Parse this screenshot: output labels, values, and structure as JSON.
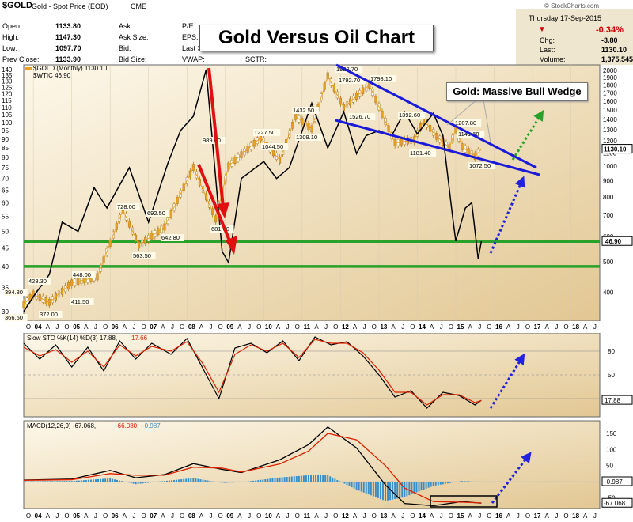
{
  "header": {
    "symbol": "$GOLD",
    "name": "Gold - Spot Price (EOD)",
    "exchange": "CME",
    "date": "Thursday  17-Sep-2015",
    "change_pct": "-0.34%",
    "watermark": "© StockCharts.com",
    "col1": [
      [
        "Open:",
        "1133.80"
      ],
      [
        "High:",
        "1147.30"
      ],
      [
        "Low:",
        "1097.70"
      ],
      [
        "Prev Close:",
        "1133.90"
      ]
    ],
    "col2": [
      "Ask:",
      "Ask Size:",
      "Bid:",
      "Bid Size:"
    ],
    "col3": [
      "P/E:",
      "EPS:",
      "Last S",
      "VWAP:"
    ],
    "sctr": "SCTR:",
    "right": [
      [
        "Chg:",
        "-3.80"
      ],
      [
        "Last:",
        "1130.10"
      ],
      [
        "Volume:",
        "1,375,545"
      ]
    ]
  },
  "overlay": {
    "title": "Gold Versus Oil Chart",
    "callout": "Gold:  Massive Bull Wedge"
  },
  "chart_data": [
    {
      "type": "line",
      "panel": "price",
      "legend": [
        "$GOLD (Monthly) 1130.10",
        "$WTIC 46.90"
      ],
      "x_tick_labels": [
        "O",
        "04",
        "A",
        "J",
        "O",
        "05",
        "A",
        "J",
        "O",
        "06",
        "A",
        "J",
        "O",
        "07",
        "A",
        "J",
        "O",
        "08",
        "A",
        "J",
        "O",
        "09",
        "A",
        "J",
        "O",
        "10",
        "A",
        "J",
        "O",
        "11",
        "A",
        "J",
        "O",
        "12",
        "A",
        "J",
        "O",
        "13",
        "A",
        "J",
        "O",
        "14",
        "A",
        "J",
        "O",
        "15",
        "A",
        "J",
        "O",
        "16",
        "A",
        "J",
        "O",
        "17",
        "A",
        "J",
        "O",
        "18",
        "A",
        "J"
      ],
      "left_axis_ticks": [
        140,
        135,
        130,
        125,
        120,
        115,
        110,
        105,
        100,
        95,
        90,
        85,
        80,
        75,
        70,
        65,
        60,
        55,
        50,
        45,
        40,
        35,
        30
      ],
      "right_axis_ticks": [
        2000,
        1900,
        1800,
        1700,
        1600,
        1500,
        1400,
        1300,
        1200,
        1100,
        1000,
        900,
        800,
        700,
        600,
        500,
        400
      ],
      "series": [
        {
          "name": "$GOLD (Monthly)",
          "color": "#e8a020",
          "x": [
            "2003-10",
            "2004-01",
            "2004-06",
            "2005-01",
            "2005-09",
            "2006-05",
            "2006-10",
            "2007-06",
            "2008-03",
            "2008-10",
            "2009-02",
            "2009-12",
            "2010-06",
            "2010-11",
            "2011-04",
            "2011-09",
            "2012-02",
            "2012-10",
            "2013-06",
            "2013-12",
            "2014-03",
            "2014-07",
            "2014-11",
            "2015-01",
            "2015-03",
            "2015-07",
            "2015-09"
          ],
          "y": [
            366.5,
            394.8,
            372,
            428.3,
            448,
            728,
            563.5,
            642.8,
            989.6,
            681,
            1000,
            1227.5,
            1044.5,
            1432.5,
            1309.1,
            1923.7,
            1526.7,
            1798.1,
            1181.4,
            1210,
            1392.6,
            1240,
            1141.6,
            1307.8,
            1150,
            1072.5,
            1130.1
          ]
        },
        {
          "name": "$WTIC",
          "color": "#000000",
          "x": [
            "2003-10",
            "2004-01",
            "2004-06",
            "2004-10",
            "2005-03",
            "2005-08",
            "2005-12",
            "2006-07",
            "2007-01",
            "2007-07",
            "2007-11",
            "2008-03",
            "2008-07",
            "2008-12",
            "2009-02",
            "2009-06",
            "2010-01",
            "2010-05",
            "2010-09",
            "2011-04",
            "2011-09",
            "2012-02",
            "2012-06",
            "2012-09",
            "2013-01",
            "2013-05",
            "2013-09",
            "2014-01",
            "2014-06",
            "2014-09",
            "2014-12",
            "2015-01",
            "2015-04",
            "2015-06",
            "2015-08",
            "2015-09"
          ],
          "y": [
            30,
            33,
            38,
            53,
            50,
            66,
            58,
            75,
            53,
            77,
            95,
            104,
            140,
            44,
            41,
            70,
            78,
            70,
            75,
            113,
            85,
            107,
            82,
            92,
            95,
            92,
            107,
            93,
            106,
            92,
            55,
            47,
            58,
            60,
            42,
            46.9
          ]
        }
      ],
      "horizontal_levels": [
        46.9,
        40
      ],
      "price_labels": [
        "1923.70",
        "1792.70",
        "1798.10",
        "1526.70",
        "1392.60",
        "1432.50",
        "1309.10",
        "1227.50",
        "1044.50",
        "1207.80",
        "1181.40",
        "1141.60",
        "1072.50",
        "989.60",
        "681.00",
        "728.00",
        "692.50",
        "642.80",
        "563.50",
        "448.00",
        "428.30",
        "411.50",
        "394.80",
        "372.00",
        "366.50"
      ],
      "last_tags": [
        "1130.10",
        "46.90"
      ]
    },
    {
      "type": "line",
      "panel": "stochastic",
      "legend": [
        "Slow STO %K(14) %D(3) 17.88,",
        "17.66"
      ],
      "y_ticks": [
        80,
        50,
        20
      ],
      "last_tag": "17.88",
      "series": [
        {
          "name": "%K",
          "color": "#000000",
          "x": [
            "2003-10",
            "2004-03",
            "2004-08",
            "2005-01",
            "2005-06",
            "2005-11",
            "2006-04",
            "2006-09",
            "2007-02",
            "2007-08",
            "2008-01",
            "2008-06",
            "2008-11",
            "2009-04",
            "2009-09",
            "2010-02",
            "2010-07",
            "2010-12",
            "2011-05",
            "2011-10",
            "2012-03",
            "2012-08",
            "2013-01",
            "2013-06",
            "2013-11",
            "2014-04",
            "2014-09",
            "2015-02",
            "2015-07",
            "2015-09"
          ],
          "y": [
            90,
            70,
            88,
            60,
            85,
            55,
            93,
            70,
            90,
            76,
            96,
            58,
            20,
            84,
            90,
            78,
            93,
            68,
            98,
            88,
            92,
            74,
            50,
            22,
            30,
            8,
            28,
            24,
            12,
            17.88
          ]
        },
        {
          "name": "%D",
          "color": "#dd2200",
          "x": [
            "2003-10",
            "2004-03",
            "2004-08",
            "2005-01",
            "2005-06",
            "2005-11",
            "2006-04",
            "2006-09",
            "2007-02",
            "2007-08",
            "2008-01",
            "2008-06",
            "2008-11",
            "2009-04",
            "2009-09",
            "2010-02",
            "2010-07",
            "2010-12",
            "2011-05",
            "2011-10",
            "2012-03",
            "2012-08",
            "2013-01",
            "2013-06",
            "2013-11",
            "2014-04",
            "2014-09",
            "2015-02",
            "2015-07",
            "2015-09"
          ],
          "y": [
            85,
            74,
            82,
            66,
            80,
            60,
            88,
            74,
            86,
            80,
            92,
            64,
            28,
            76,
            88,
            80,
            90,
            72,
            95,
            90,
            90,
            78,
            56,
            28,
            28,
            12,
            25,
            25,
            15,
            17.66
          ]
        }
      ]
    },
    {
      "type": "line",
      "panel": "macd",
      "legend": [
        "MACD(12,26,9) -67.068,",
        "-66.080,",
        "-0.987"
      ],
      "y_ticks": [
        150,
        100,
        50,
        -50
      ],
      "last_tags": [
        "-0.987",
        "-67.068"
      ],
      "series": [
        {
          "name": "MACD",
          "color": "#000000",
          "x": [
            "2003-10",
            "2005-01",
            "2006-01",
            "2006-09",
            "2007-06",
            "2008-03",
            "2008-12",
            "2009-06",
            "2010-06",
            "2011-03",
            "2011-09",
            "2012-06",
            "2013-03",
            "2013-09",
            "2014-06",
            "2015-03",
            "2015-09"
          ],
          "y": [
            5,
            8,
            35,
            12,
            22,
            56,
            38,
            28,
            68,
            115,
            170,
            105,
            -10,
            -68,
            -75,
            -62,
            -67.068
          ]
        },
        {
          "name": "Signal",
          "color": "#dd2200",
          "x": [
            "2003-10",
            "2005-01",
            "2006-01",
            "2006-09",
            "2007-06",
            "2008-03",
            "2008-12",
            "2009-06",
            "2010-06",
            "2011-03",
            "2011-09",
            "2012-06",
            "2013-03",
            "2013-09",
            "2014-06",
            "2015-03",
            "2015-09"
          ],
          "y": [
            4,
            6,
            25,
            20,
            20,
            45,
            42,
            30,
            55,
            95,
            150,
            130,
            50,
            -20,
            -62,
            -64,
            -66.08
          ]
        },
        {
          "name": "Histogram",
          "color": "#3a8fc8",
          "x": [
            "2003-10",
            "2005-01",
            "2006-01",
            "2006-09",
            "2007-06",
            "2008-03",
            "2008-12",
            "2009-06",
            "2010-06",
            "2011-03",
            "2011-09",
            "2012-06",
            "2013-03",
            "2013-09",
            "2014-06",
            "2015-03",
            "2015-09"
          ],
          "y": [
            1,
            2,
            10,
            -8,
            2,
            11,
            -4,
            -2,
            13,
            20,
            20,
            -25,
            -60,
            -48,
            -13,
            2,
            -0.987
          ]
        }
      ]
    }
  ]
}
